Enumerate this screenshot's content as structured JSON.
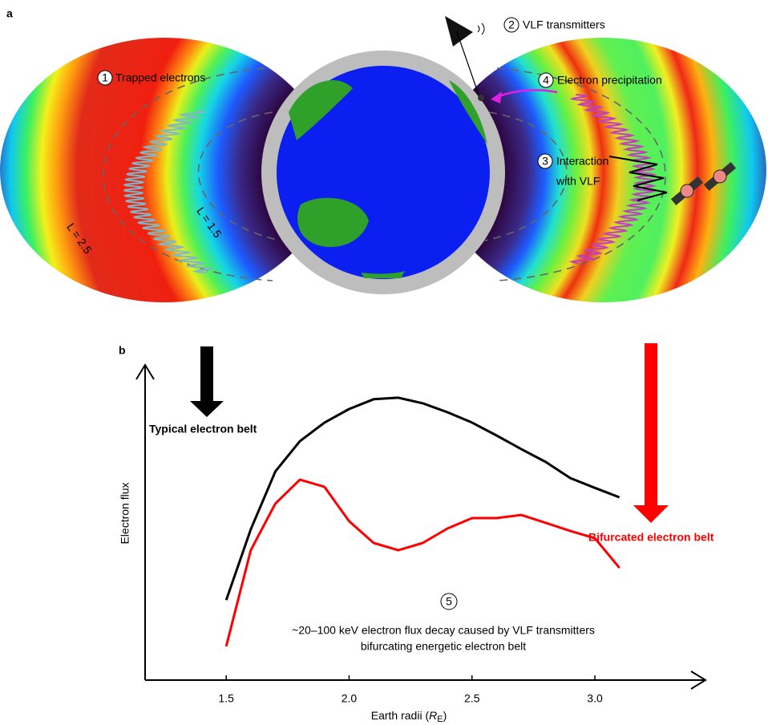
{
  "panel_labels": [
    "a",
    "b"
  ],
  "diagram": {
    "steps": [
      {
        "number": "1",
        "label": "Trapped electrons"
      },
      {
        "number": "2",
        "label": "VLF transmitters"
      },
      {
        "number": "3",
        "label": [
          "Interaction",
          "with VLF"
        ]
      },
      {
        "number": "4",
        "label": "Electron precipitation"
      }
    ],
    "l_labels": [
      "L = 2.5",
      "L = 1.5"
    ]
  },
  "chart_data": {
    "type": "line",
    "ylabel": "Electron flux",
    "xlabel": [
      "Earth radii (",
      "R",
      "E",
      ")"
    ],
    "annotation": {
      "number": "5",
      "lines": [
        "~20–100 keV electron flux decay caused by VLF transmitters",
        "bifurcating energetic electron belt"
      ]
    },
    "x": [
      1.5,
      1.6,
      1.7,
      1.8,
      1.9,
      2.0,
      2.1,
      2.2,
      2.3,
      2.4,
      2.5,
      2.6,
      2.7,
      2.8,
      2.9,
      3.0,
      3.1
    ],
    "series": [
      {
        "name": "Typical electron belt",
        "color": "#000000",
        "values": [
          25.4,
          47.8,
          66.2,
          75.8,
          81.7,
          86.0,
          89.1,
          89.6,
          87.8,
          85.0,
          81.7,
          77.6,
          73.3,
          69.2,
          64.1,
          61.0,
          58.0
        ]
      },
      {
        "name": "Bifurcated electron belt",
        "color": "#ff0000",
        "values": [
          10.7,
          41.2,
          56.0,
          63.6,
          61.3,
          50.4,
          43.5,
          41.2,
          43.5,
          48.1,
          51.4,
          51.4,
          52.4,
          49.9,
          47.3,
          45.0,
          35.6
        ]
      }
    ],
    "xlim": [
      1.17,
      3.45
    ],
    "ylim": [
      0,
      100
    ],
    "xticks": [
      1.5,
      {
        "value": 2,
        "label": "2.0"
      },
      2.5,
      {
        "value": 3,
        "label": "3.0"
      }
    ]
  }
}
